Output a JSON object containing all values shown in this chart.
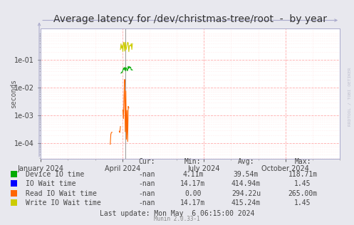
{
  "title": "Average latency for /dev/christmas-tree/root  -  by year",
  "ylabel": "seconds",
  "bg_color": "#e8e8ee",
  "plot_bg_color": "#ffffff",
  "grid_color_major": "#ffaaaa",
  "grid_color_minor": "#ffdddd",
  "spine_color": "#aaaacc",
  "legend_items": [
    {
      "label": "Device IO time",
      "color": "#00aa00"
    },
    {
      "label": "IO Wait time",
      "color": "#0000ff"
    },
    {
      "label": "Read IO Wait time",
      "color": "#ff6600"
    },
    {
      "label": "Write IO Wait time",
      "color": "#cccc00"
    }
  ],
  "legend_stats": [
    {
      "cur": "-nan",
      "min": "4.11m",
      "avg": "39.54m",
      "max": "118.71m"
    },
    {
      "cur": "-nan",
      "min": "14.17m",
      "avg": "414.94m",
      "max": "1.45"
    },
    {
      "cur": "-nan",
      "min": "0.00",
      "avg": "294.22u",
      "max": "265.00m"
    },
    {
      "cur": "-nan",
      "min": "14.17m",
      "avg": "415.24m",
      "max": "1.45"
    }
  ],
  "watermark": "RRDTOOL / TOBI OETIKER",
  "footer": "Munin 2.0.33-1",
  "last_update": "Last update: Mon May  6 06:15:00 2024",
  "xlabel_ticks": [
    "January 2024",
    "April 2024",
    "July 2024",
    "October 2024"
  ],
  "title_fontsize": 10,
  "axis_fontsize": 7,
  "legend_fontsize": 7
}
